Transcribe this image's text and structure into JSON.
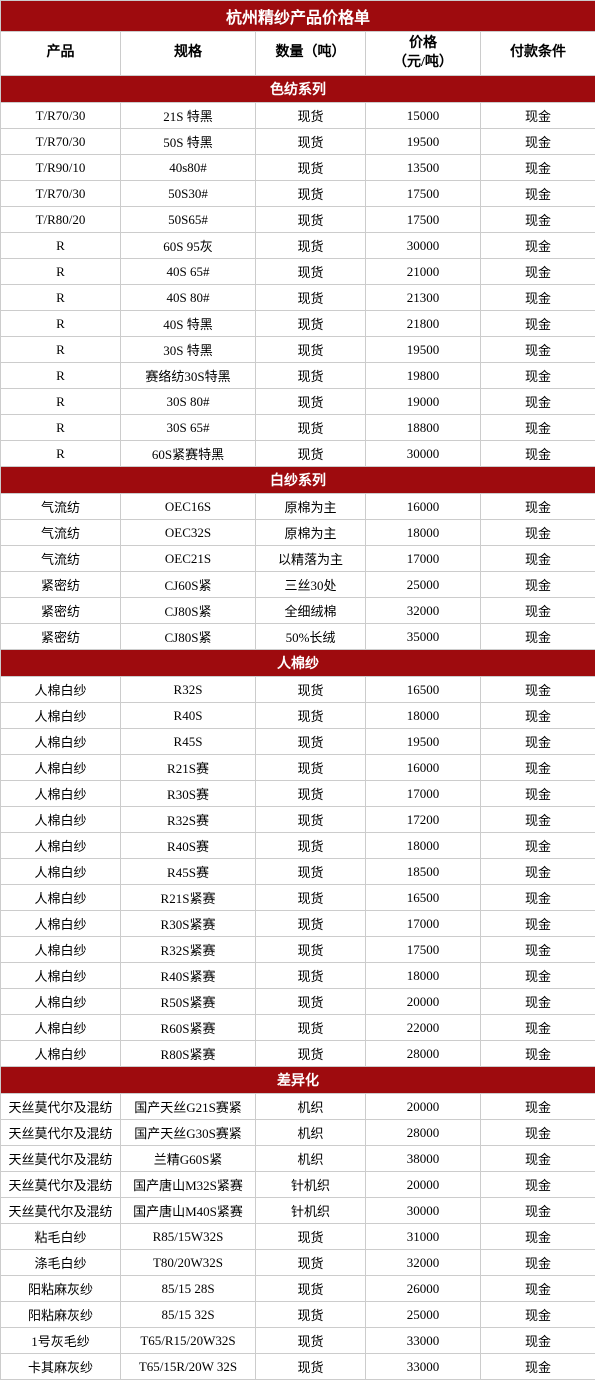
{
  "title": "杭州精纱产品价格单",
  "columns": [
    "产品",
    "规格",
    "数量（吨）",
    "价格\n（元/吨）",
    "付款条件"
  ],
  "colors": {
    "section_bg": "#9e0b0e",
    "section_fg": "#ffffff",
    "row_bg": "#ffffff",
    "row_fg": "#000000",
    "border": "#cccccc"
  },
  "sections": [
    {
      "name": "色纺系列",
      "rows": [
        [
          "T/R70/30",
          "21S 特黑",
          "现货",
          "15000",
          "现金"
        ],
        [
          "T/R70/30",
          "50S 特黑",
          "现货",
          "19500",
          "现金"
        ],
        [
          "T/R90/10",
          "40s80#",
          "现货",
          "13500",
          "现金"
        ],
        [
          "T/R70/30",
          "50S30#",
          "现货",
          "17500",
          "现金"
        ],
        [
          "T/R80/20",
          "50S65#",
          "现货",
          "17500",
          "现金"
        ],
        [
          "R",
          "60S 95灰",
          "现货",
          "30000",
          "现金"
        ],
        [
          "R",
          "40S   65#",
          "现货",
          "21000",
          "现金"
        ],
        [
          "R",
          "40S   80#",
          "现货",
          "21300",
          "现金"
        ],
        [
          "R",
          "40S  特黑",
          "现货",
          "21800",
          "现金"
        ],
        [
          "R",
          "30S 特黑",
          "现货",
          "19500",
          "现金"
        ],
        [
          "R",
          "赛络纺30S特黑",
          "现货",
          "19800",
          "现金"
        ],
        [
          "R",
          "30S 80#",
          "现货",
          "19000",
          "现金"
        ],
        [
          "R",
          "30S 65#",
          "现货",
          "18800",
          "现金"
        ],
        [
          "R",
          "60S紧赛特黑",
          "现货",
          "30000",
          "现金"
        ]
      ]
    },
    {
      "name": "白纱系列",
      "rows": [
        [
          "气流纺",
          "OEC16S",
          "原棉为主",
          "16000",
          "现金"
        ],
        [
          "气流纺",
          "OEC32S",
          "原棉为主",
          "18000",
          "现金"
        ],
        [
          "气流纺",
          "OEC21S",
          "以精落为主",
          "17000",
          "现金"
        ],
        [
          "紧密纺",
          "CJ60S紧",
          "三丝30处",
          "25000",
          "现金"
        ],
        [
          "紧密纺",
          "CJ80S紧",
          "全细绒棉",
          "32000",
          "现金"
        ],
        [
          "紧密纺",
          "CJ80S紧",
          "50%长绒",
          "35000",
          "现金"
        ]
      ]
    },
    {
      "name": "人棉纱",
      "rows": [
        [
          "人棉白纱",
          "R32S",
          "现货",
          "16500",
          "现金"
        ],
        [
          "人棉白纱",
          "R40S",
          "现货",
          "18000",
          "现金"
        ],
        [
          "人棉白纱",
          "R45S",
          "现货",
          "19500",
          "现金"
        ],
        [
          "人棉白纱",
          "R21S赛",
          "现货",
          "16000",
          "现金"
        ],
        [
          "人棉白纱",
          "R30S赛",
          "现货",
          "17000",
          "现金"
        ],
        [
          "人棉白纱",
          "R32S赛",
          "现货",
          "17200",
          "现金"
        ],
        [
          "人棉白纱",
          "R40S赛",
          "现货",
          "18000",
          "现金"
        ],
        [
          "人棉白纱",
          "R45S赛",
          "现货",
          "18500",
          "现金"
        ],
        [
          "人棉白纱",
          "R21S紧赛",
          "现货",
          "16500",
          "现金"
        ],
        [
          "人棉白纱",
          "R30S紧赛",
          "现货",
          "17000",
          "现金"
        ],
        [
          "人棉白纱",
          "R32S紧赛",
          "现货",
          "17500",
          "现金"
        ],
        [
          "人棉白纱",
          "R40S紧赛",
          "现货",
          "18000",
          "现金"
        ],
        [
          "人棉白纱",
          "R50S紧赛",
          "现货",
          "20000",
          "现金"
        ],
        [
          "人棉白纱",
          "R60S紧赛",
          "现货",
          "22000",
          "现金"
        ],
        [
          "人棉白纱",
          "R80S紧赛",
          "现货",
          "28000",
          "现金"
        ]
      ]
    },
    {
      "name": "差异化",
      "rows": [
        [
          "天丝莫代尔及混纺",
          "国产天丝G21S赛紧",
          "机织",
          "20000",
          "现金"
        ],
        [
          "天丝莫代尔及混纺",
          "国产天丝G30S赛紧",
          "机织",
          "28000",
          "现金"
        ],
        [
          "天丝莫代尔及混纺",
          "兰精G60S紧",
          "机织",
          "38000",
          "现金"
        ],
        [
          "天丝莫代尔及混纺",
          "国产唐山M32S紧赛",
          "针机织",
          "20000",
          "现金"
        ],
        [
          "天丝莫代尔及混纺",
          "国产唐山M40S紧赛",
          "针机织",
          "30000",
          "现金"
        ],
        [
          "粘毛白纱",
          "R85/15W32S",
          "现货",
          "31000",
          "现金"
        ],
        [
          "涤毛白纱",
          "T80/20W32S",
          "现货",
          "32000",
          "现金"
        ],
        [
          "阳粘麻灰纱",
          "85/15   28S",
          "现货",
          "26000",
          "现金"
        ],
        [
          "阳粘麻灰纱",
          "85/15   32S",
          "现货",
          "25000",
          "现金"
        ],
        [
          "1号灰毛纱",
          "T65/R15/20W32S",
          "现货",
          "33000",
          "现金"
        ],
        [
          "卡其麻灰纱",
          "T65/15R/20W 32S",
          "现货",
          "33000",
          "现金"
        ]
      ]
    }
  ]
}
